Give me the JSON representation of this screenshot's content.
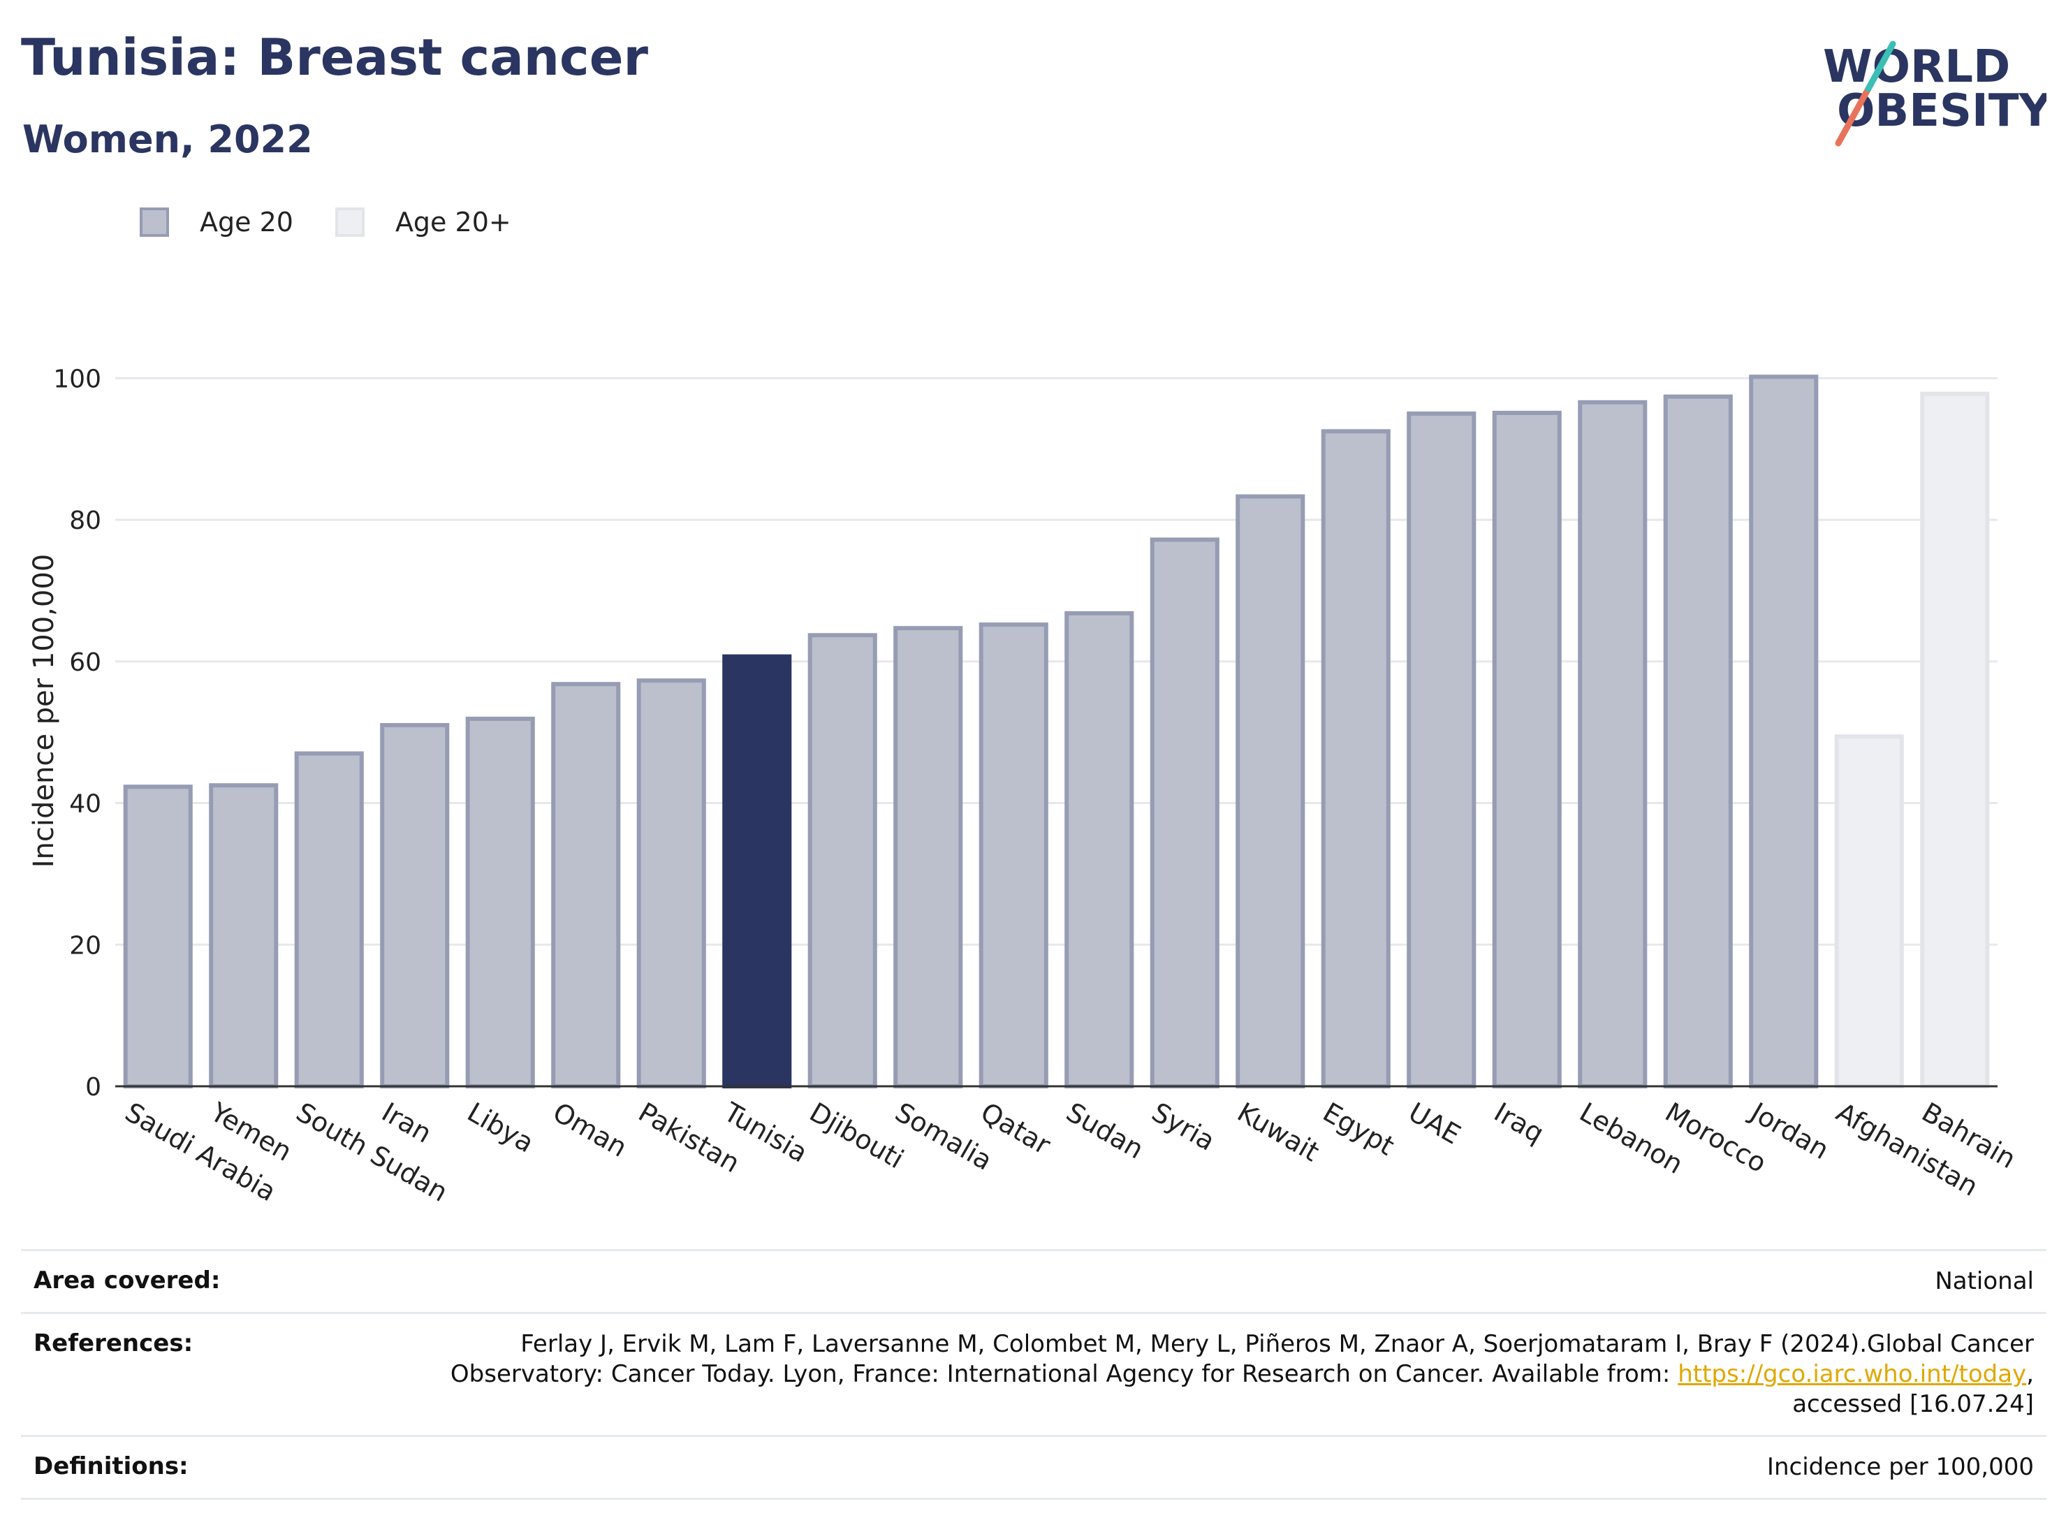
{
  "header": {
    "title": "Tunisia: Breast cancer",
    "subtitle": "Women, 2022",
    "logo_line1": "WORLD",
    "logo_line2": "OBESITY"
  },
  "legend": [
    {
      "label": "Age 20",
      "color": "#bcc0cd",
      "border": "#969cb3"
    },
    {
      "label": "Age 20+",
      "color": "#eeeff3",
      "border": "#e3e4ea"
    }
  ],
  "chart_data": {
    "type": "bar",
    "ylabel": "Incidence per 100,000",
    "ylim": [
      0,
      110
    ],
    "yticks": [
      0,
      20,
      40,
      60,
      80,
      100
    ],
    "grid": true,
    "legend_placement": "top-left",
    "highlight": "Tunisia",
    "highlight_color": "#2b3561",
    "categories": [
      "Saudi Arabia",
      "Yemen",
      "South Sudan",
      "Iran",
      "Libya",
      "Oman",
      "Pakistan",
      "Tunisia",
      "Djibouti",
      "Somalia",
      "Qatar",
      "Sudan",
      "Syria",
      "Kuwait",
      "Egypt",
      "UAE",
      "Iraq",
      "Lebanon",
      "Morocco",
      "Jordan",
      "Afghanistan",
      "Bahrain"
    ],
    "values": [
      42.3,
      42.5,
      47.0,
      51.0,
      51.9,
      56.8,
      57.3,
      60.7,
      63.7,
      64.7,
      65.2,
      66.8,
      77.2,
      83.3,
      92.5,
      95.0,
      95.1,
      96.6,
      97.4,
      100.2,
      49.4,
      97.8
    ],
    "groups": [
      "Age 20",
      "Age 20",
      "Age 20",
      "Age 20",
      "Age 20",
      "Age 20",
      "Age 20",
      "Age 20",
      "Age 20",
      "Age 20",
      "Age 20",
      "Age 20",
      "Age 20",
      "Age 20",
      "Age 20",
      "Age 20",
      "Age 20",
      "Age 20",
      "Age 20",
      "Age 20",
      "Age 20+",
      "Age 20+"
    ]
  },
  "footer": {
    "area_label": "Area covered:",
    "area_value": "National",
    "references_label": "References:",
    "references_line1": "Ferlay J, Ervik M, Lam F, Laversanne M, Colombet M, Mery L, Piñeros M, Znaor A, Soerjomataram I, Bray F (2024).Global Cancer",
    "references_line2_pre": "Observatory: Cancer Today. Lyon, France: International Agency for Research on Cancer. Available from: ",
    "references_link": "https://gco.iarc.who.int/today",
    "references_line2_post": ",",
    "references_line3": "accessed [16.07.24]",
    "definitions_label": "Definitions:",
    "definitions_value": "Incidence per 100,000"
  }
}
